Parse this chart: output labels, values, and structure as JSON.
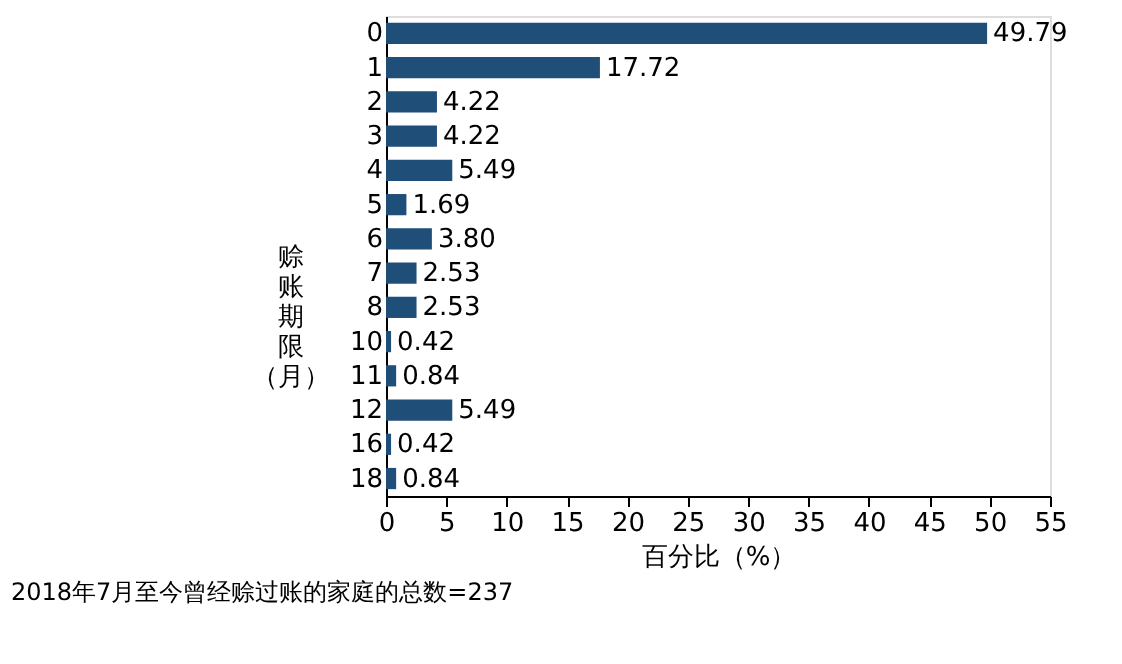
{
  "chart_data": {
    "type": "bar",
    "orientation": "horizontal",
    "categories": [
      "0",
      "1",
      "2",
      "3",
      "4",
      "5",
      "6",
      "7",
      "8",
      "10",
      "11",
      "12",
      "16",
      "18"
    ],
    "values": [
      49.79,
      17.72,
      4.22,
      4.22,
      5.49,
      1.69,
      3.8,
      2.53,
      2.53,
      0.42,
      0.84,
      5.49,
      0.42,
      0.84
    ],
    "value_labels": [
      "49.79",
      "17.72",
      "4.22",
      "4.22",
      "5.49",
      "1.69",
      "3.80",
      "2.53",
      "2.53",
      "0.42",
      "0.84",
      "5.49",
      "0.42",
      "0.84"
    ],
    "color": "#1f4e79",
    "xlim": [
      0,
      55
    ],
    "xticks": [
      0,
      5,
      10,
      15,
      20,
      25,
      30,
      35,
      40,
      45,
      50,
      55
    ],
    "xlabel": "百分比（%）",
    "ylabel": "赊账期限（月）",
    "grid": false,
    "annotations": [
      "2018年7月至今曾经赊过账的家庭的总数=237"
    ]
  }
}
